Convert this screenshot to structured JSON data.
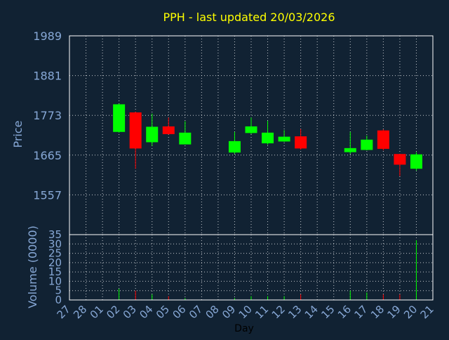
{
  "colors": {
    "background": "#112233",
    "title": "#ffff00",
    "axis_text": "#87a8d6",
    "grid": "#ffffff",
    "up": "#00ff00",
    "down": "#ff0000"
  },
  "chart_data": {
    "type": "candlestick",
    "title": "PPH - last updated 20/03/2026",
    "xlabel": "Day",
    "price_panel": {
      "ylabel": "Price",
      "ylim": [
        1449,
        1989
      ],
      "yticks": [
        1557,
        1665,
        1773,
        1881,
        1989
      ]
    },
    "volume_panel": {
      "ylabel": "Volume (0000)",
      "ylim": [
        0,
        35
      ],
      "yticks": [
        0,
        5,
        10,
        15,
        20,
        25,
        30,
        35
      ]
    },
    "x_tick_labels": [
      "27",
      "28",
      "01",
      "02",
      "03",
      "04",
      "05",
      "06",
      "07",
      "08",
      "09",
      "10",
      "11",
      "12",
      "13",
      "14",
      "15",
      "16",
      "17",
      "18",
      "19",
      "20",
      "21"
    ],
    "candles": [
      {
        "day": "02",
        "open": 1728,
        "high": 1805,
        "low": 1726,
        "close": 1803,
        "volume": 6
      },
      {
        "day": "03",
        "open": 1781,
        "high": 1783,
        "low": 1628,
        "close": 1683,
        "volume": 5
      },
      {
        "day": "04",
        "open": 1700,
        "high": 1778,
        "low": 1690,
        "close": 1742,
        "volume": 3
      },
      {
        "day": "05",
        "open": 1743,
        "high": 1767,
        "low": 1721,
        "close": 1722,
        "volume": 2
      },
      {
        "day": "06",
        "open": 1694,
        "high": 1757,
        "low": 1694,
        "close": 1726,
        "volume": 1
      },
      {
        "day": "09",
        "open": 1672,
        "high": 1728,
        "low": 1668,
        "close": 1703,
        "volume": 1
      },
      {
        "day": "10",
        "open": 1725,
        "high": 1767,
        "low": 1722,
        "close": 1743,
        "volume": 2
      },
      {
        "day": "11",
        "open": 1697,
        "high": 1758,
        "low": 1693,
        "close": 1726,
        "volume": 2
      },
      {
        "day": "12",
        "open": 1702,
        "high": 1733,
        "low": 1701,
        "close": 1715,
        "volume": 2
      },
      {
        "day": "13",
        "open": 1716,
        "high": 1736,
        "low": 1680,
        "close": 1683,
        "volume": 3
      },
      {
        "day": "16",
        "open": 1673,
        "high": 1728,
        "low": 1668,
        "close": 1684,
        "volume": 5
      },
      {
        "day": "17",
        "open": 1679,
        "high": 1718,
        "low": 1678,
        "close": 1707,
        "volume": 4
      },
      {
        "day": "18",
        "open": 1732,
        "high": 1735,
        "low": 1678,
        "close": 1682,
        "volume": 3
      },
      {
        "day": "19",
        "open": 1668,
        "high": 1668,
        "low": 1608,
        "close": 1639,
        "volume": 3
      },
      {
        "day": "20",
        "open": 1628,
        "high": 1673,
        "low": 1623,
        "close": 1667,
        "volume": 32
      }
    ]
  }
}
